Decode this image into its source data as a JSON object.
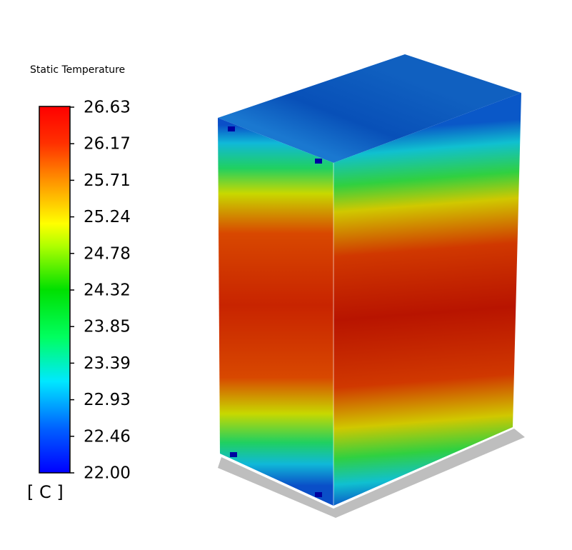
{
  "legend": {
    "title": "Static Temperature",
    "ticks": [
      "26.63",
      "26.17",
      "25.71",
      "25.24",
      "24.78",
      "24.32",
      "23.85",
      "23.39",
      "22.93",
      "22.46",
      "22.00"
    ],
    "unit": "[ C ]"
  }
}
